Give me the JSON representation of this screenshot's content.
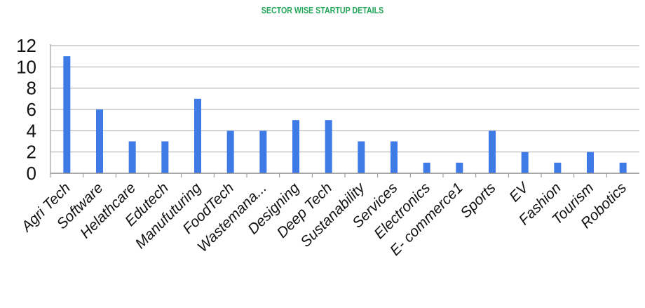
{
  "chart_data": {
    "type": "bar",
    "title": "SECTOR WISE STARTUP DETAILS",
    "xlabel": "",
    "ylabel": "",
    "categories": [
      "Agri Tech",
      "Software",
      "Helathcare",
      "Edutech",
      "Manufuturing",
      "FoodTech",
      "Wastemana...",
      "Designing",
      "Deep Tech",
      "Sustanability",
      "Services",
      "Electronics",
      "E- commerce1",
      "Sports",
      "EV",
      "Fashion",
      "Tourism",
      "Robotics"
    ],
    "values": [
      11,
      6,
      3,
      3,
      7,
      4,
      4,
      5,
      5,
      3,
      3,
      1,
      1,
      4,
      2,
      1,
      2,
      1
    ],
    "ylim": [
      0,
      12
    ],
    "yticks": [
      "0",
      "2",
      "4",
      "6",
      "8",
      "10",
      "12"
    ],
    "grid": true,
    "legend": "none"
  },
  "colors": {
    "bar": "#3f7be6",
    "grid": "#a9a9a9",
    "axis": "#8c8c8c",
    "title": "#24a65a"
  }
}
